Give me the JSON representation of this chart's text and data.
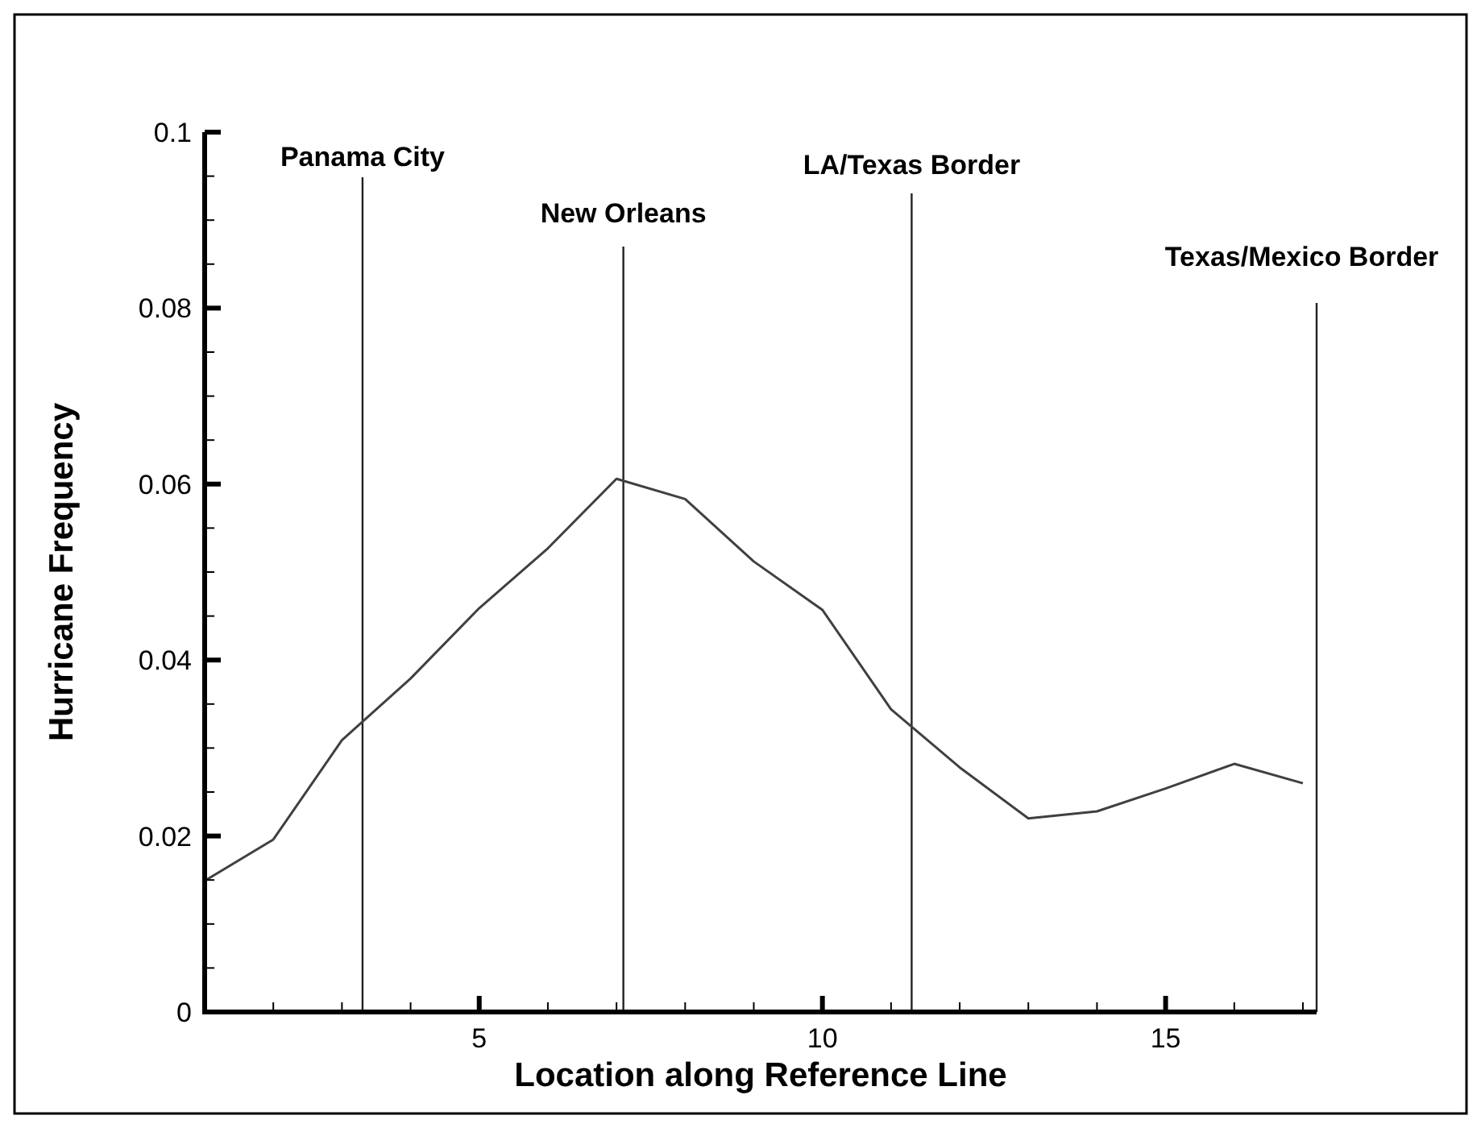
{
  "chart_data": {
    "type": "line",
    "xlabel": "Location along Reference Line",
    "ylabel": "Hurricane Frequency",
    "x": [
      1,
      2,
      3,
      4,
      5,
      6,
      7,
      8,
      9,
      10,
      11,
      12,
      13,
      14,
      15,
      16,
      17
    ],
    "series": [
      {
        "color": "#404040",
        "values": [
          0.0149,
          0.0196,
          0.0309,
          0.0379,
          0.0459,
          0.0527,
          0.0606,
          0.0583,
          0.0512,
          0.0457,
          0.0344,
          0.0278,
          0.022,
          0.0228,
          0.0254,
          0.0282,
          0.026
        ]
      }
    ],
    "xlim": [
      1,
      17.2
    ],
    "xticks": [
      {
        "value": 1,
        "label": null
      },
      {
        "value": 2,
        "label": null
      },
      {
        "value": 3,
        "label": null
      },
      {
        "value": 4,
        "label": null
      },
      5,
      {
        "value": 6,
        "label": null
      },
      {
        "value": 7,
        "label": null
      },
      {
        "value": 8,
        "label": null
      },
      {
        "value": 9,
        "label": null
      },
      10,
      {
        "value": 11,
        "label": null
      },
      {
        "value": 12,
        "label": null
      },
      {
        "value": 13,
        "label": null
      },
      {
        "value": 14,
        "label": null
      },
      15,
      {
        "value": 16,
        "label": null
      },
      {
        "value": 17,
        "label": null
      }
    ],
    "ylim": [
      0,
      0.1
    ],
    "yticks": [
      0,
      {
        "value": 0.005,
        "label": null
      },
      {
        "value": 0.01,
        "label": null
      },
      {
        "value": 0.015,
        "label": null
      },
      0.02,
      {
        "value": 0.025,
        "label": null
      },
      {
        "value": 0.03,
        "label": null
      },
      {
        "value": 0.035,
        "label": null
      },
      0.04,
      {
        "value": 0.045,
        "label": null
      },
      {
        "value": 0.05,
        "label": null
      },
      {
        "value": 0.055,
        "label": null
      },
      0.06,
      {
        "value": 0.065,
        "label": null
      },
      {
        "value": 0.07,
        "label": null
      },
      {
        "value": 0.075,
        "label": null
      },
      0.08,
      {
        "value": 0.085,
        "label": null
      },
      {
        "value": 0.09,
        "label": null
      },
      {
        "value": 0.095,
        "label": null
      },
      0.1
    ],
    "ref_lines": [
      {
        "axis": "x",
        "value": 3.3,
        "label": "Panama City"
      },
      {
        "axis": "x",
        "value": 7.1,
        "label": "New Orleans"
      },
      {
        "axis": "x",
        "value": 11.3,
        "label": "LA/Texas Border"
      },
      {
        "axis": "x",
        "value": 17.2,
        "label": "Texas/Mexico Border"
      }
    ],
    "marker": "none",
    "line_style": "solid"
  }
}
